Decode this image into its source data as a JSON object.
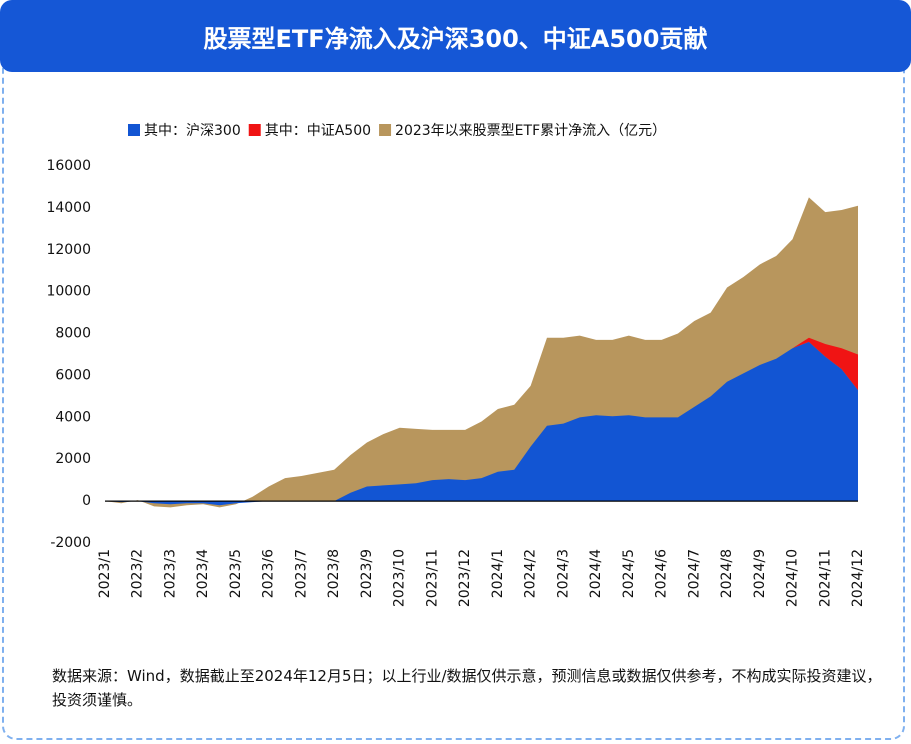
{
  "chart_data": {
    "type": "area",
    "title": "股票型ETF净流入及沪深300、中证A500贡献",
    "note": "数据来源：Wind，数据截止至2024年12月5日；以上行业/数据仅供示意，预测信息或数据仅供参考，不构成实际投资建议，投资须谨慎。",
    "categories": [
      "2023/1",
      null,
      "2023/2",
      null,
      "2023/3",
      null,
      "2023/4",
      null,
      "2023/5",
      null,
      "2023/6",
      null,
      "2023/7",
      null,
      "2023/8",
      null,
      "2023/9",
      null,
      "2023/10",
      null,
      "2023/11",
      null,
      "2023/12",
      null,
      "2024/1",
      null,
      "2024/2",
      null,
      "2024/3",
      null,
      "2024/4",
      null,
      "2024/5",
      null,
      "2024/6",
      null,
      "2024/7",
      null,
      "2024/8",
      null,
      "2024/9",
      null,
      "2024/10",
      null,
      "2024/11",
      null,
      "2024/12"
    ],
    "series": [
      {
        "name": "其中：沪深300",
        "color": "#1255d3",
        "values": [
          0,
          -50,
          0,
          -100,
          -150,
          -100,
          -100,
          -200,
          -100,
          -50,
          0,
          0,
          0,
          0,
          0,
          400,
          700,
          750,
          800,
          850,
          1000,
          1050,
          1000,
          1100,
          1400,
          1500,
          2600,
          3600,
          3700,
          4000,
          4100,
          4050,
          4100,
          4000,
          4000,
          4000,
          4500,
          5000,
          5700,
          6100,
          6500,
          6800,
          7300,
          7600,
          6900,
          6300,
          5300
        ]
      },
      {
        "name": "其中：中证A500",
        "color": "#f01414",
        "values": [
          0,
          0,
          0,
          0,
          0,
          0,
          0,
          0,
          0,
          0,
          0,
          0,
          0,
          0,
          0,
          0,
          0,
          0,
          0,
          0,
          0,
          0,
          0,
          0,
          0,
          0,
          0,
          0,
          0,
          0,
          0,
          0,
          0,
          0,
          0,
          0,
          0,
          0,
          0,
          0,
          0,
          0,
          0,
          200,
          600,
          1000,
          1700
        ]
      },
      {
        "name": "2023年以来股票型ETF累计净流入（亿元）",
        "color": "#b8965d",
        "values": [
          0,
          -100,
          50,
          -250,
          -300,
          -200,
          -150,
          -300,
          -150,
          200,
          700,
          1100,
          1200,
          1350,
          1500,
          2200,
          2800,
          3200,
          3500,
          3450,
          3400,
          3400,
          3400,
          3800,
          4400,
          4600,
          5500,
          7800,
          7800,
          7900,
          7700,
          7700,
          7900,
          7700,
          7700,
          8000,
          8600,
          9000,
          10200,
          10700,
          11300,
          11700,
          12500,
          14500,
          13800,
          13900,
          14100
        ]
      }
    ],
    "ylim": [
      -2000,
      16000
    ],
    "yticks": [
      -2000,
      0,
      2000,
      4000,
      6000,
      8000,
      10000,
      12000,
      14000,
      16000
    ]
  }
}
